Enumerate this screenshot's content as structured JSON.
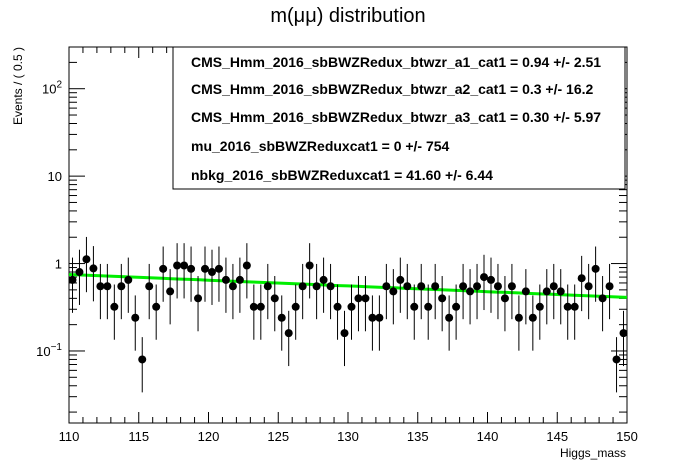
{
  "chart_data": {
    "type": "scatter",
    "title": "m(μμ) distribution",
    "xlabel": "Higgs_mass",
    "ylabel": "Events / ( 0.5 )",
    "xlim": [
      110,
      150
    ],
    "ylim": [
      0.015,
      300
    ],
    "ylog": true,
    "grid": false,
    "legend_position": "top-right",
    "x_ticks": [
      110,
      115,
      120,
      125,
      130,
      135,
      140,
      145,
      150
    ],
    "y_ticks": [
      {
        "value": 0.1,
        "base": "10",
        "exp": "−1"
      },
      {
        "value": 1,
        "base": "1",
        "exp": ""
      },
      {
        "value": 10,
        "base": "10",
        "exp": ""
      },
      {
        "value": 100,
        "base": "10",
        "exp": "2"
      }
    ],
    "series": [
      {
        "kind": "data-points",
        "color": "#000000",
        "x": [
          110.25,
          110.75,
          111.25,
          111.75,
          112.25,
          112.75,
          113.25,
          113.75,
          114.25,
          114.75,
          115.25,
          115.75,
          116.25,
          116.75,
          117.25,
          117.75,
          118.25,
          118.75,
          119.25,
          119.75,
          120.25,
          120.75,
          121.25,
          121.75,
          122.25,
          122.75,
          123.25,
          123.75,
          124.25,
          124.75,
          125.25,
          125.75,
          126.25,
          126.75,
          127.25,
          127.75,
          128.25,
          128.75,
          129.25,
          129.75,
          130.25,
          130.75,
          131.25,
          131.75,
          132.25,
          132.75,
          133.25,
          133.75,
          134.25,
          134.75,
          135.25,
          135.75,
          136.25,
          136.75,
          137.25,
          137.75,
          138.25,
          138.75,
          139.25,
          139.75,
          140.25,
          140.75,
          141.25,
          141.75,
          142.25,
          142.75,
          143.25,
          143.75,
          144.25,
          144.75,
          145.25,
          145.75,
          146.25,
          146.75,
          147.25,
          147.75,
          148.25,
          148.75,
          149.25,
          149.75
        ],
        "y": [
          0.65,
          0.8,
          1.12,
          0.88,
          0.55,
          0.55,
          0.32,
          0.55,
          0.65,
          0.24,
          0.08,
          0.55,
          0.32,
          0.87,
          0.48,
          0.95,
          0.95,
          0.87,
          0.4,
          0.87,
          0.8,
          0.87,
          0.65,
          0.55,
          0.65,
          0.95,
          0.32,
          0.32,
          0.55,
          0.4,
          0.24,
          0.16,
          0.32,
          0.55,
          0.95,
          0.55,
          0.65,
          0.55,
          0.32,
          0.16,
          0.32,
          0.4,
          0.4,
          0.24,
          0.24,
          0.55,
          0.48,
          0.65,
          0.55,
          0.32,
          0.55,
          0.32,
          0.55,
          0.4,
          0.24,
          0.32,
          0.55,
          0.48,
          0.55,
          0.7,
          0.65,
          0.55,
          0.4,
          0.55,
          0.24,
          0.48,
          0.24,
          0.32,
          0.48,
          0.55,
          0.48,
          0.32,
          0.32,
          0.68,
          0.55,
          0.87,
          0.4,
          0.55,
          0.08,
          0.16
        ]
      },
      {
        "kind": "fit-curve",
        "color": "#00ee00",
        "x": [
          110,
          150
        ],
        "y": [
          0.75,
          0.41
        ]
      }
    ],
    "legend_entries": [
      "CMS_Hmm_2016_sbBWZRedux_btwzr_a1_cat1 =  0.94 +/- 2.51",
      "CMS_Hmm_2016_sbBWZRedux_btwzr_a2_cat1 =  0.3 +/- 16.2",
      "CMS_Hmm_2016_sbBWZRedux_btwzr_a3_cat1 =  0.30 +/- 5.97",
      "mu_2016_sbBWZReduxcat1 =  0 +/- 754",
      "nbkg_2016_sbBWZReduxcat1 =  41.60 +/- 6.44"
    ]
  }
}
